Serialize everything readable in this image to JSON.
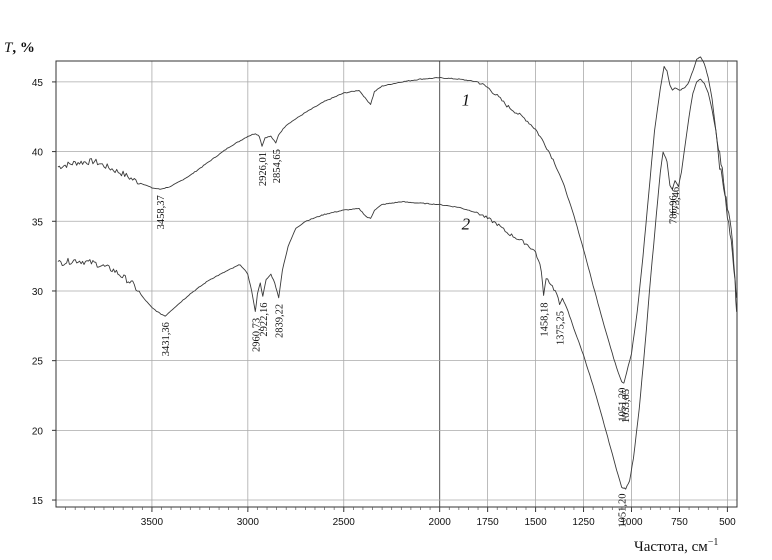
{
  "chart_data": {
    "type": "line",
    "ylabel_var": "T",
    "ylabel_unit": ", %",
    "xlabel": "Частота, см",
    "xlabel_sup": "−1",
    "xlim": [
      4000,
      450
    ],
    "ylim": [
      14.5,
      46.5
    ],
    "grid": true,
    "x_ticks": [
      {
        "v": 3500,
        "label": "3500"
      },
      {
        "v": 3000,
        "label": "3000"
      },
      {
        "v": 2500,
        "label": "2500"
      },
      {
        "v": 2000,
        "label": "2000"
      },
      {
        "v": 1750,
        "label": "1750"
      },
      {
        "v": 1500,
        "label": "1500"
      },
      {
        "v": 1250,
        "label": "1250"
      },
      {
        "v": 1000,
        "label": "1000"
      },
      {
        "v": 750,
        "label": "750"
      },
      {
        "v": 500,
        "label": "500"
      }
    ],
    "y_ticks": [
      {
        "v": 15,
        "label": "15"
      },
      {
        "v": 20,
        "label": "20"
      },
      {
        "v": 25,
        "label": "25"
      },
      {
        "v": 30,
        "label": "30"
      },
      {
        "v": 35,
        "label": "35"
      },
      {
        "v": 40,
        "label": "40"
      },
      {
        "v": 45,
        "label": "45"
      }
    ],
    "series": [
      {
        "name": "1",
        "label_at": [
          1990,
          43.3
        ],
        "points": [
          [
            3990,
            38.9
          ],
          [
            3900,
            39.2
          ],
          [
            3800,
            39.3
          ],
          [
            3750,
            39.0
          ],
          [
            3700,
            38.7
          ],
          [
            3650,
            38.4
          ],
          [
            3600,
            38.0
          ],
          [
            3550,
            37.7
          ],
          [
            3500,
            37.4
          ],
          [
            3458,
            37.3
          ],
          [
            3400,
            37.5
          ],
          [
            3300,
            38.3
          ],
          [
            3200,
            39.3
          ],
          [
            3100,
            40.3
          ],
          [
            3000,
            41.1
          ],
          [
            2960,
            41.3
          ],
          [
            2940,
            41.1
          ],
          [
            2926,
            40.4
          ],
          [
            2910,
            41.0
          ],
          [
            2880,
            41.1
          ],
          [
            2854,
            40.6
          ],
          [
            2840,
            41.2
          ],
          [
            2800,
            41.9
          ],
          [
            2700,
            42.8
          ],
          [
            2600,
            43.6
          ],
          [
            2500,
            44.2
          ],
          [
            2420,
            44.4
          ],
          [
            2380,
            43.7
          ],
          [
            2360,
            43.4
          ],
          [
            2340,
            44.3
          ],
          [
            2300,
            44.7
          ],
          [
            2200,
            45.0
          ],
          [
            2100,
            45.2
          ],
          [
            2000,
            45.3
          ],
          [
            1900,
            45.2
          ],
          [
            1800,
            45.0
          ],
          [
            1750,
            44.6
          ],
          [
            1700,
            44.0
          ],
          [
            1650,
            43.3
          ],
          [
            1600,
            42.8
          ],
          [
            1550,
            42.3
          ],
          [
            1500,
            41.6
          ],
          [
            1450,
            40.5
          ],
          [
            1400,
            39.2
          ],
          [
            1350,
            37.5
          ],
          [
            1300,
            35.4
          ],
          [
            1250,
            33.0
          ],
          [
            1200,
            30.4
          ],
          [
            1150,
            27.9
          ],
          [
            1100,
            25.5
          ],
          [
            1070,
            24.2
          ],
          [
            1051,
            23.5
          ],
          [
            1040,
            23.4
          ],
          [
            1034,
            23.7
          ],
          [
            1000,
            25.5
          ],
          [
            970,
            28.5
          ],
          [
            940,
            32.5
          ],
          [
            910,
            37.0
          ],
          [
            880,
            41.5
          ],
          [
            850,
            44.5
          ],
          [
            830,
            46.1
          ],
          [
            815,
            45.8
          ],
          [
            800,
            44.8
          ],
          [
            787,
            44.4
          ],
          [
            773,
            44.6
          ],
          [
            750,
            44.4
          ],
          [
            720,
            44.6
          ],
          [
            700,
            45.0
          ],
          [
            680,
            45.8
          ],
          [
            660,
            46.6
          ],
          [
            640,
            46.8
          ],
          [
            620,
            46.3
          ],
          [
            600,
            45.3
          ],
          [
            580,
            43.8
          ],
          [
            560,
            41.5
          ],
          [
            540,
            39.0
          ],
          [
            520,
            37.5
          ],
          [
            500,
            36.0
          ],
          [
            480,
            34.5
          ],
          [
            460,
            31.0
          ],
          [
            452,
            29.5
          ]
        ]
      },
      {
        "name": "2",
        "label_at": [
          1990,
          34.4
        ],
        "points": [
          [
            3990,
            32.0
          ],
          [
            3900,
            32.2
          ],
          [
            3800,
            32.0
          ],
          [
            3700,
            31.5
          ],
          [
            3600,
            30.5
          ],
          [
            3550,
            29.6
          ],
          [
            3500,
            28.8
          ],
          [
            3460,
            28.4
          ],
          [
            3431,
            28.2
          ],
          [
            3400,
            28.6
          ],
          [
            3300,
            29.8
          ],
          [
            3200,
            30.8
          ],
          [
            3100,
            31.5
          ],
          [
            3040,
            31.9
          ],
          [
            3000,
            31.2
          ],
          [
            2980,
            30.0
          ],
          [
            2961,
            28.5
          ],
          [
            2950,
            29.8
          ],
          [
            2935,
            30.6
          ],
          [
            2922,
            29.6
          ],
          [
            2905,
            30.8
          ],
          [
            2880,
            31.2
          ],
          [
            2860,
            30.6
          ],
          [
            2839,
            29.5
          ],
          [
            2820,
            31.5
          ],
          [
            2790,
            33.2
          ],
          [
            2750,
            34.5
          ],
          [
            2700,
            35.0
          ],
          [
            2600,
            35.5
          ],
          [
            2500,
            35.8
          ],
          [
            2420,
            35.9
          ],
          [
            2380,
            35.3
          ],
          [
            2360,
            35.2
          ],
          [
            2340,
            35.8
          ],
          [
            2300,
            36.2
          ],
          [
            2200,
            36.4
          ],
          [
            2100,
            36.3
          ],
          [
            2000,
            36.2
          ],
          [
            1900,
            36.0
          ],
          [
            1800,
            35.6
          ],
          [
            1750,
            35.2
          ],
          [
            1700,
            34.8
          ],
          [
            1650,
            34.2
          ],
          [
            1600,
            33.8
          ],
          [
            1550,
            33.4
          ],
          [
            1500,
            32.8
          ],
          [
            1470,
            31.5
          ],
          [
            1458,
            29.6
          ],
          [
            1445,
            31.0
          ],
          [
            1420,
            30.5
          ],
          [
            1390,
            29.8
          ],
          [
            1375,
            29.0
          ],
          [
            1360,
            29.5
          ],
          [
            1330,
            28.5
          ],
          [
            1300,
            27.3
          ],
          [
            1250,
            25.4
          ],
          [
            1200,
            23.2
          ],
          [
            1150,
            20.8
          ],
          [
            1100,
            18.3
          ],
          [
            1070,
            16.8
          ],
          [
            1051,
            15.9
          ],
          [
            1030,
            15.8
          ],
          [
            1010,
            16.4
          ],
          [
            990,
            18.0
          ],
          [
            960,
            21.5
          ],
          [
            930,
            26.0
          ],
          [
            900,
            31.0
          ],
          [
            870,
            35.5
          ],
          [
            850,
            38.5
          ],
          [
            835,
            40.0
          ],
          [
            815,
            39.3
          ],
          [
            800,
            37.6
          ],
          [
            787,
            37.3
          ],
          [
            773,
            37.9
          ],
          [
            755,
            37.5
          ],
          [
            740,
            38.5
          ],
          [
            720,
            40.5
          ],
          [
            700,
            42.5
          ],
          [
            680,
            44.2
          ],
          [
            660,
            45.0
          ],
          [
            640,
            45.2
          ],
          [
            620,
            44.9
          ],
          [
            600,
            44.2
          ],
          [
            580,
            43.0
          ],
          [
            560,
            41.5
          ],
          [
            540,
            39.8
          ],
          [
            520,
            38.0
          ],
          [
            500,
            35.5
          ],
          [
            480,
            33.5
          ],
          [
            460,
            30.5
          ],
          [
            452,
            28.5
          ]
        ]
      }
    ],
    "annotations": [
      {
        "text": "3458,37",
        "x": 3458,
        "y": 37.3
      },
      {
        "text": "2926,01",
        "x": 2926,
        "y": 40.4
      },
      {
        "text": "2854,65",
        "x": 2854,
        "y": 40.6
      },
      {
        "text": "3431,36",
        "x": 3431,
        "y": 28.2
      },
      {
        "text": "2960,73",
        "x": 2961,
        "y": 28.5
      },
      {
        "text": "2922,16",
        "x": 2922,
        "y": 29.6
      },
      {
        "text": "2839,22",
        "x": 2839,
        "y": 29.5
      },
      {
        "text": "1458,18",
        "x": 1458,
        "y": 29.6
      },
      {
        "text": "1375,25",
        "x": 1375,
        "y": 29.0
      },
      {
        "text": "1051,20",
        "x": 1051,
        "y": 23.5
      },
      {
        "text": "1033,85",
        "x": 1034,
        "y": 23.4
      },
      {
        "text": "1051,20",
        "x": 1051,
        "y": 15.9
      },
      {
        "text": "786,96",
        "x": 787,
        "y": 37.3
      },
      {
        "text": "773,46",
        "x": 773,
        "y": 37.9
      }
    ]
  }
}
